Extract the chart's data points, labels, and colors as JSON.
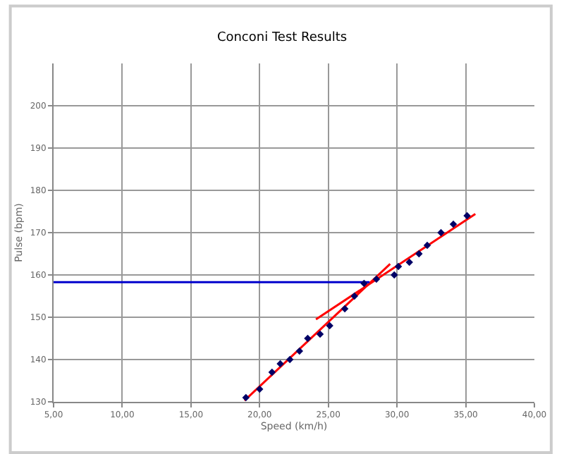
{
  "chart_data": {
    "type": "scatter",
    "title": "Conconi Test Results",
    "xlabel": "Speed (km/h)",
    "ylabel": "Pulse (bpm)",
    "xlim": [
      5,
      40
    ],
    "ylim": [
      130,
      210
    ],
    "xticks": [
      {
        "value": 5,
        "label": "5,00"
      },
      {
        "value": 10,
        "label": "10,00"
      },
      {
        "value": 15,
        "label": "15,00"
      },
      {
        "value": 20,
        "label": "20,00"
      },
      {
        "value": 25,
        "label": "25,00"
      },
      {
        "value": 30,
        "label": "30,00"
      },
      {
        "value": 35,
        "label": "35,00"
      },
      {
        "value": 40,
        "label": "40,00"
      }
    ],
    "yticks": [
      130,
      140,
      150,
      160,
      170,
      180,
      190,
      200
    ],
    "grid": true,
    "marker": "diamond",
    "series": [
      {
        "color": "#000066",
        "x": [
          19.0,
          20.0,
          20.9,
          21.5,
          22.2,
          22.9,
          23.5,
          24.4,
          25.1,
          26.2,
          26.9,
          27.6,
          28.5,
          29.8,
          30.1,
          30.9,
          31.6,
          32.2,
          33.2,
          34.1,
          35.1
        ],
        "values": [
          131,
          133,
          137,
          139,
          140,
          142,
          145,
          146,
          148,
          152,
          155,
          158,
          159,
          160,
          162,
          163,
          165,
          167,
          170,
          172,
          174
        ]
      },
      {
        "type": "line",
        "marker": "none",
        "color": "#ff0000",
        "x": [
          18.9,
          29.5
        ],
        "values": [
          130.3,
          162.6
        ]
      },
      {
        "type": "line",
        "marker": "none",
        "color": "#ff0000",
        "x": [
          24.1,
          35.7
        ],
        "values": [
          149.5,
          174.4
        ]
      },
      {
        "type": "line",
        "marker": "none",
        "color": "#0000cc",
        "x": [
          5,
          28.0
        ],
        "values": [
          158.3,
          158.3
        ]
      }
    ]
  }
}
